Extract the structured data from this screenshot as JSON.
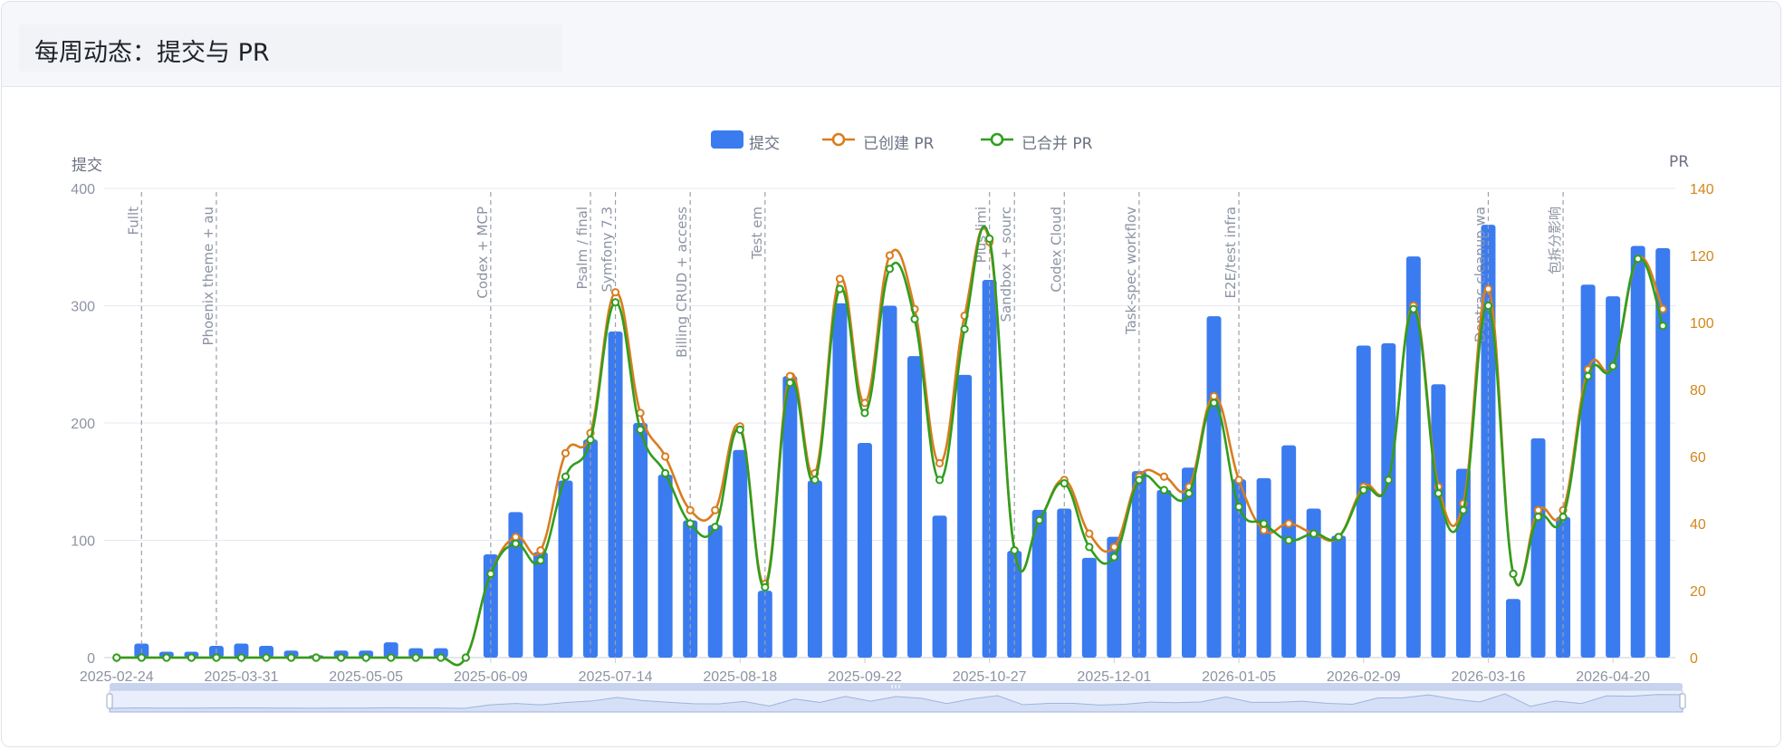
{
  "page": {
    "title": "每周动态：提交与 PR"
  },
  "chart_data": {
    "type": "bar",
    "xlabel": "",
    "ylabel_left": "提交",
    "ylabel_right": "PR",
    "ylim_left": [
      0,
      400
    ],
    "ylim_right": [
      0,
      140
    ],
    "yticks_left": [
      0,
      100,
      200,
      300,
      400
    ],
    "yticks_right": [
      0,
      20,
      40,
      60,
      80,
      100,
      120,
      140
    ],
    "legend_position": "top",
    "grid": true,
    "colors": {
      "commits": "#3b7bf0",
      "created": "#d97d1f",
      "merged": "#2f9e1e",
      "annotation": "#9aa0aa",
      "right_axis": "#d4861c"
    },
    "x_tick_labels": [
      "2025-02-24",
      "2025-03-31",
      "2025-05-05",
      "2025-06-09",
      "2025-07-14",
      "2025-08-18",
      "2025-09-22",
      "2025-10-27",
      "2025-12-01",
      "2026-01-05",
      "2026-02-09",
      "2026-03-16",
      "2026-04-20"
    ],
    "weeks": [
      "2025-02-24",
      "2025-03-03",
      "2025-03-10",
      "2025-03-17",
      "2025-03-24",
      "2025-03-31",
      "2025-04-07",
      "2025-04-14",
      "2025-04-21",
      "2025-04-28",
      "2025-05-05",
      "2025-05-12",
      "2025-05-19",
      "2025-05-26",
      "2025-06-02",
      "2025-06-09",
      "2025-06-16",
      "2025-06-23",
      "2025-06-30",
      "2025-07-07",
      "2025-07-14",
      "2025-07-21",
      "2025-07-28",
      "2025-08-04",
      "2025-08-11",
      "2025-08-18",
      "2025-08-25",
      "2025-09-01",
      "2025-09-08",
      "2025-09-15",
      "2025-09-22",
      "2025-09-29",
      "2025-10-06",
      "2025-10-13",
      "2025-10-20",
      "2025-10-27",
      "2025-11-03",
      "2025-11-10",
      "2025-11-17",
      "2025-11-24",
      "2025-12-01",
      "2025-12-08",
      "2025-12-15",
      "2025-12-22",
      "2025-12-29",
      "2026-01-05",
      "2026-01-12",
      "2026-01-19",
      "2026-01-26",
      "2026-02-02",
      "2026-02-09",
      "2026-02-16",
      "2026-02-23",
      "2026-03-02",
      "2026-03-09",
      "2026-03-16",
      "2026-03-23",
      "2026-03-30",
      "2026-04-06",
      "2026-04-13",
      "2026-04-20",
      "2026-04-27",
      "2026-05-04"
    ],
    "series": [
      {
        "name": "提交",
        "type": "bar",
        "axis": "left",
        "values": [
          0,
          12,
          5,
          5,
          10,
          12,
          10,
          6,
          2,
          6,
          6,
          13,
          8,
          8,
          0,
          88,
          124,
          90,
          151,
          186,
          278,
          200,
          156,
          117,
          113,
          177,
          57,
          240,
          151,
          302,
          183,
          300,
          257,
          121,
          241,
          322,
          91,
          126,
          127,
          85,
          103,
          159,
          143,
          162,
          291,
          152,
          153,
          181,
          127,
          104,
          266,
          268,
          342,
          233,
          161,
          369,
          50,
          187,
          120,
          318,
          308,
          351,
          349
        ]
      },
      {
        "name": "已创建 PR",
        "type": "line",
        "axis": "right",
        "values": [
          0,
          0,
          0,
          0,
          0,
          0,
          0,
          0,
          0,
          0,
          0,
          0,
          0,
          0,
          0,
          25,
          36,
          32,
          61,
          67,
          109,
          73,
          60,
          44,
          44,
          69,
          22,
          84,
          55,
          113,
          76,
          120,
          104,
          58,
          102,
          124,
          32,
          41,
          53,
          37,
          33,
          54,
          54,
          51,
          78,
          53,
          38,
          40,
          37,
          36,
          51,
          53,
          105,
          51,
          46,
          110,
          25,
          44,
          44,
          86,
          87,
          119,
          104
        ]
      },
      {
        "name": "已合并 PR",
        "type": "line",
        "axis": "right",
        "values": [
          0,
          0,
          0,
          0,
          0,
          0,
          0,
          0,
          0,
          0,
          0,
          0,
          0,
          0,
          0,
          25,
          34,
          29,
          54,
          65,
          106,
          68,
          55,
          40,
          39,
          68,
          21,
          82,
          53,
          110,
          73,
          116,
          101,
          53,
          98,
          125,
          32,
          41,
          52,
          33,
          30,
          53,
          50,
          49,
          76,
          45,
          40,
          35,
          37,
          36,
          50,
          53,
          104,
          49,
          44,
          105,
          25,
          42,
          42,
          84,
          87,
          119,
          99
        ]
      }
    ],
    "annotations": [
      {
        "week": "2025-03-03",
        "label": "Fullt"
      },
      {
        "week": "2025-03-24",
        "label": "Phoenix theme + au"
      },
      {
        "week": "2025-06-09",
        "label": "Codex + MCP"
      },
      {
        "week": "2025-07-07",
        "label": "Psalm / final"
      },
      {
        "week": "2025-07-14",
        "label": "Symfony 7.3"
      },
      {
        "week": "2025-08-04",
        "label": "Billing CRUD + access"
      },
      {
        "week": "2025-08-25",
        "label": "Test em"
      },
      {
        "week": "2025-10-27",
        "label": "Plus limi"
      },
      {
        "week": "2025-11-03",
        "label": "Sandbox + sourc"
      },
      {
        "week": "2025-11-17",
        "label": "Codex Cloud"
      },
      {
        "week": "2025-12-08",
        "label": "Task-spec workflov"
      },
      {
        "week": "2026-01-05",
        "label": "E2E/test infra"
      },
      {
        "week": "2026-03-16",
        "label": "Deptrac cleanup wa"
      },
      {
        "week": "2026-04-06",
        "label": "包拆分影响"
      }
    ]
  }
}
